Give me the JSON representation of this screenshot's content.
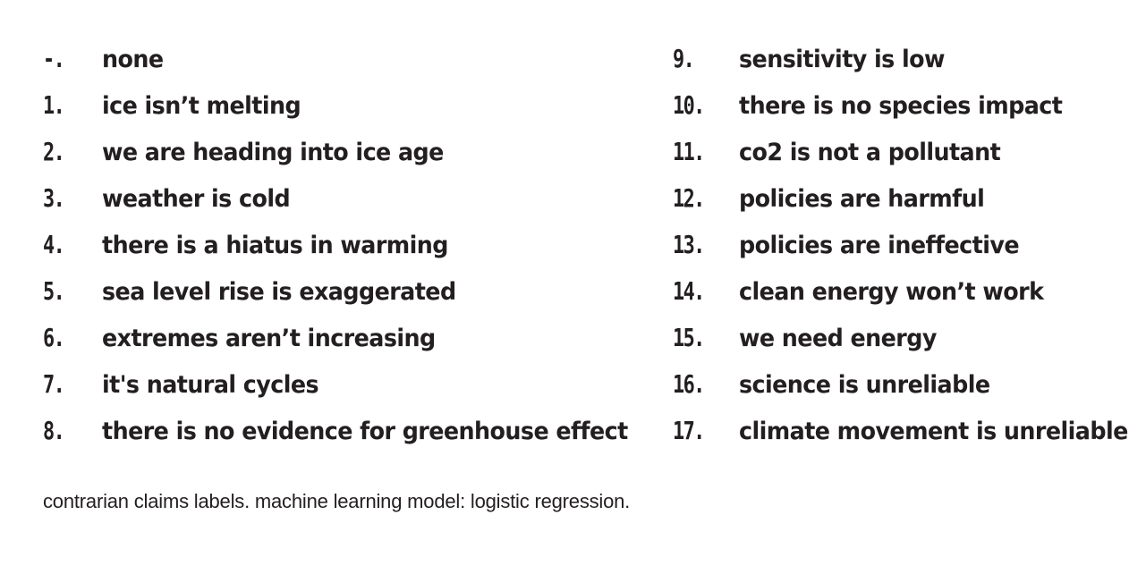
{
  "labels_left": [
    {
      "num": "-.",
      "text": "none"
    },
    {
      "num": "1.",
      "text": "ice isn’t melting"
    },
    {
      "num": "2.",
      "text": "we are heading into ice age"
    },
    {
      "num": "3.",
      "text": "weather is cold"
    },
    {
      "num": "4.",
      "text": "there is a hiatus in warming"
    },
    {
      "num": "5.",
      "text": "sea level rise is exaggerated"
    },
    {
      "num": "6.",
      "text": "extremes aren’t increasing"
    },
    {
      "num": "7.",
      "text": "it's natural cycles"
    },
    {
      "num": "8.",
      "text": "there is no evidence for greenhouse effect"
    }
  ],
  "labels_right": [
    {
      "num": "9.",
      "text": "sensitivity is low"
    },
    {
      "num": "10.",
      "text": "there is no species impact"
    },
    {
      "num": "11.",
      "text": "co2 is not a pollutant"
    },
    {
      "num": "12.",
      "text": "policies are harmful"
    },
    {
      "num": "13.",
      "text": "policies are ineffective"
    },
    {
      "num": "14.",
      "text": "clean energy won’t work"
    },
    {
      "num": "15.",
      "text": "we need energy"
    },
    {
      "num": "16.",
      "text": "science is unreliable"
    },
    {
      "num": "17.",
      "text": "climate movement is unreliable"
    }
  ],
  "caption": "contrarian claims labels. machine learning model: logistic regression."
}
